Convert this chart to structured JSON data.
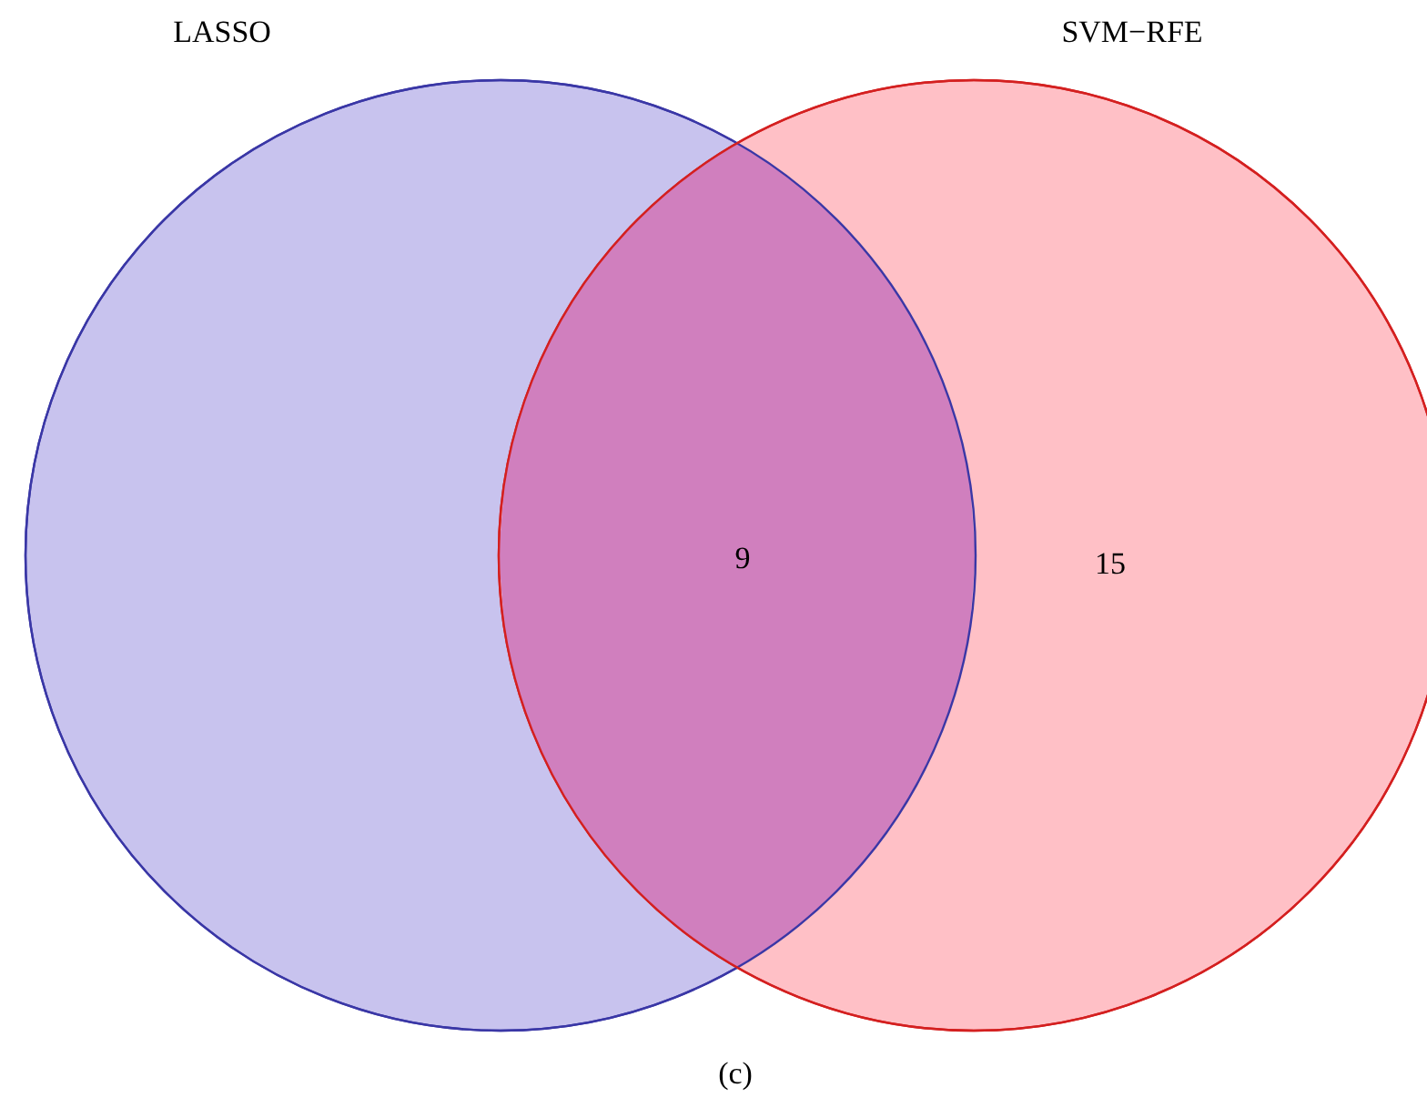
{
  "chart_data": {
    "type": "other",
    "categories": [
      "LASSO",
      null,
      "SVM−RFE"
    ],
    "values": [
      null,
      9,
      15
    ],
    "data_labels": true,
    "colors": [
      "#c8c3ee",
      "#d07fbe",
      "#ffc0c6"
    ],
    "annotations": [
      "(c)"
    ]
  }
}
